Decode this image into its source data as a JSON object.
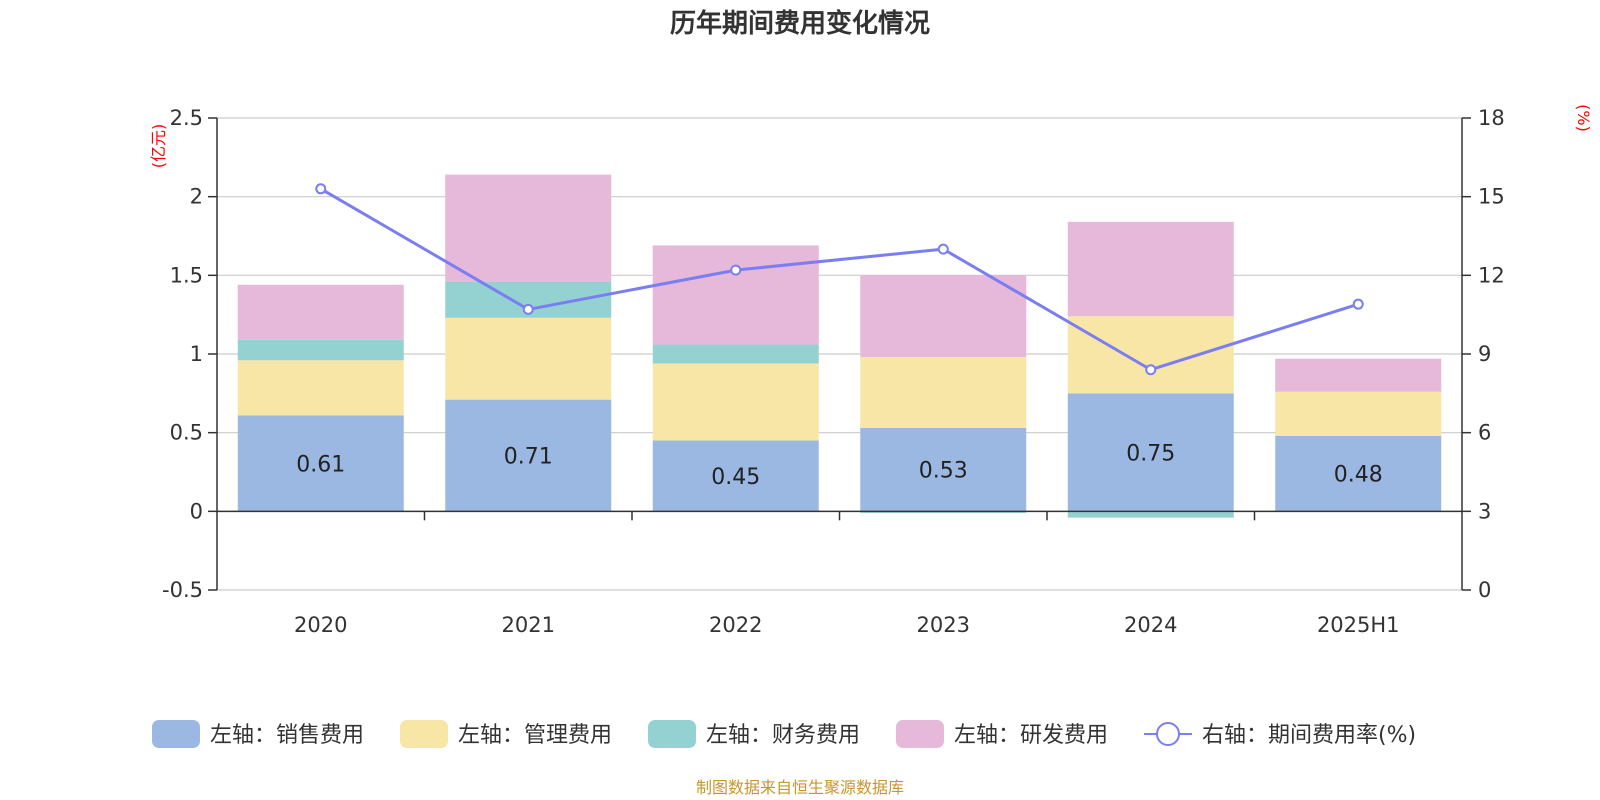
{
  "colors": {
    "sales": "#9bb8e2",
    "admin": "#f8e6a6",
    "finance": "#94d2d2",
    "rnd": "#e6b8da",
    "rate_line": "#7b7ef0",
    "unit_red": "#ff0000",
    "source": "#c8962a"
  },
  "chart_data": {
    "type": "bar",
    "stacked": true,
    "title": "历年期间费用变化情况",
    "y_left_unit": "(亿元)",
    "y_right_unit": "(%)",
    "categories": [
      "2020",
      "2021",
      "2022",
      "2023",
      "2024",
      "2025H1"
    ],
    "ylim_left": [
      -0.5,
      2.5
    ],
    "yticks_left": [
      "-0.5",
      "0",
      "0.5",
      "1",
      "1.5",
      "2",
      "2.5"
    ],
    "yticks_left_values": [
      -0.5,
      0,
      0.5,
      1,
      1.5,
      2,
      2.5
    ],
    "ylim_right": [
      0,
      18
    ],
    "yticks_right": [
      "0",
      "3",
      "6",
      "9",
      "12",
      "15",
      "18"
    ],
    "yticks_right_values": [
      0,
      3,
      6,
      9,
      12,
      15,
      18
    ],
    "grid": true,
    "legend_position": "bottom",
    "series": [
      {
        "key": "sales",
        "name": "左轴：销售费用",
        "axis": "left",
        "type": "bar",
        "values": [
          0.61,
          0.71,
          0.45,
          0.53,
          0.75,
          0.48
        ],
        "labels": [
          "0.61",
          "0.71",
          "0.45",
          "0.53",
          "0.75",
          "0.48"
        ]
      },
      {
        "key": "admin",
        "name": "左轴：管理费用",
        "axis": "left",
        "type": "bar",
        "values": [
          0.35,
          0.52,
          0.49,
          0.45,
          0.49,
          0.28
        ]
      },
      {
        "key": "finance",
        "name": "左轴：财务费用",
        "axis": "left",
        "type": "bar",
        "values": [
          0.13,
          0.23,
          0.12,
          -0.01,
          -0.04,
          0.0
        ]
      },
      {
        "key": "rnd",
        "name": "左轴：研发费用",
        "axis": "left",
        "type": "bar",
        "values": [
          0.35,
          0.68,
          0.63,
          0.52,
          0.6,
          0.21
        ]
      },
      {
        "key": "rate",
        "name": "右轴：期间费用率(%)",
        "axis": "right",
        "type": "line",
        "values": [
          15.3,
          10.7,
          12.2,
          13.0,
          8.4,
          10.9
        ]
      }
    ],
    "source": "制图数据来自恒生聚源数据库"
  }
}
